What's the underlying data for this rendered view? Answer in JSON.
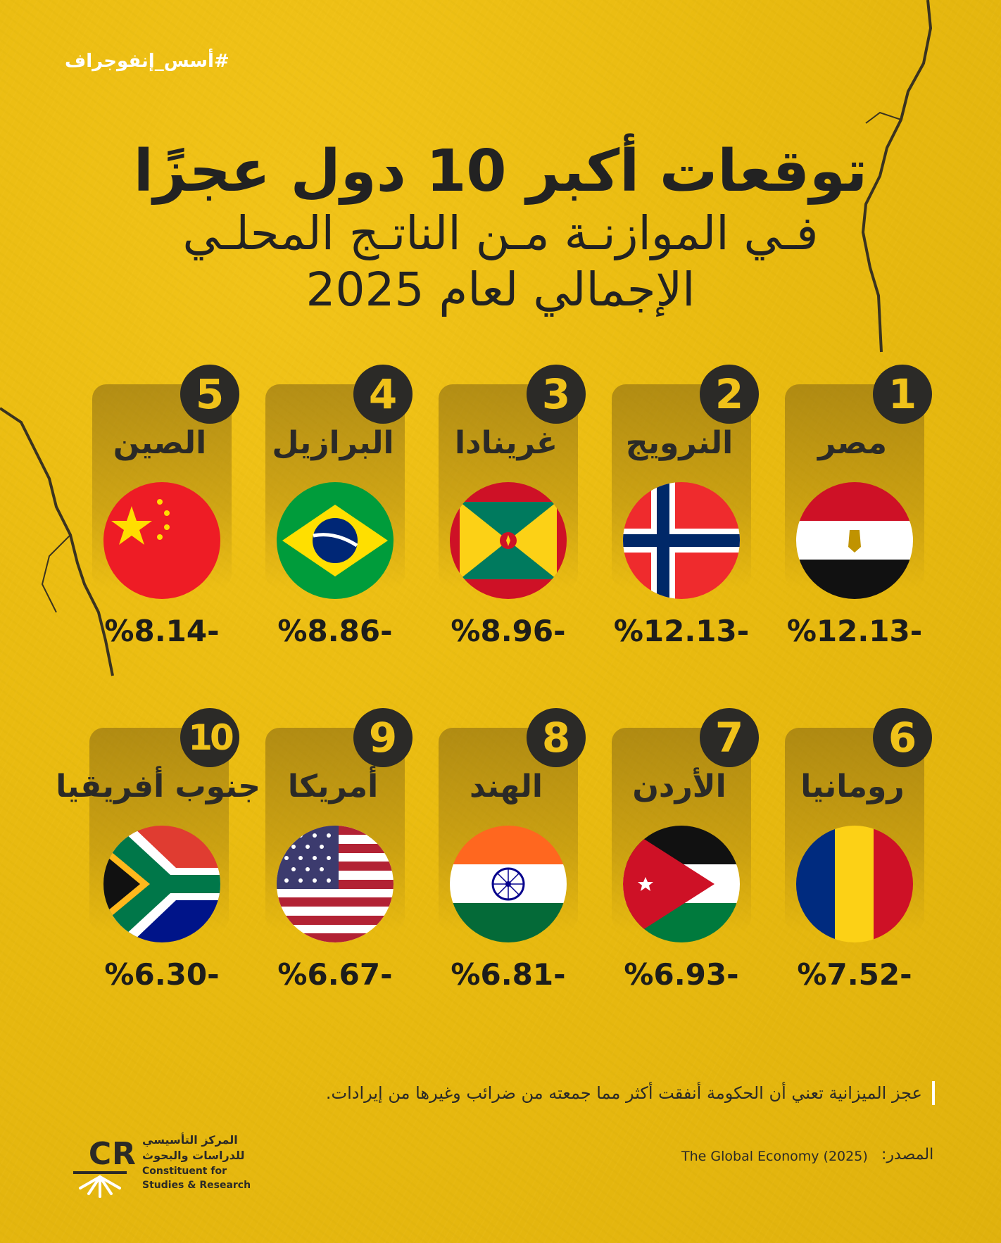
{
  "hashtag": "#أسس_إنفوجراف",
  "title": {
    "line1": "توقعات أكبر 10 دول عجزًا",
    "line2": "فـي الموازنـة مـن الناتـج المحلـي",
    "line3": "الإجمالي لعام 2025"
  },
  "countries": [
    {
      "rank": "1",
      "name": "مصر",
      "value": "%12.13-",
      "flag": "egypt-flag"
    },
    {
      "rank": "2",
      "name": "النرويج",
      "value": "%12.13-",
      "flag": "norway-flag"
    },
    {
      "rank": "3",
      "name": "غرينادا",
      "value": "%8.96-",
      "flag": "grenada-flag"
    },
    {
      "rank": "4",
      "name": "البرازيل",
      "value": "%8.86-",
      "flag": "brazil-flag"
    },
    {
      "rank": "5",
      "name": "الصين",
      "value": "%8.14-",
      "flag": "china-flag"
    },
    {
      "rank": "6",
      "name": "رومانيا",
      "value": "%7.52-",
      "flag": "romania-flag"
    },
    {
      "rank": "7",
      "name": "الأردن",
      "value": "%6.93-",
      "flag": "jordan-flag"
    },
    {
      "rank": "8",
      "name": "الهند",
      "value": "%6.81-",
      "flag": "india-flag"
    },
    {
      "rank": "9",
      "name": "أمريكا",
      "value": "%6.67-",
      "flag": "usa-flag"
    },
    {
      "rank": "10",
      "name": "جنوب أفريقيا",
      "value": "%6.30-",
      "flag": "south-africa-flag"
    }
  ],
  "note": "عجز الميزانية تعني أن الحكومة أنفقت أكثر مما جمعته من ضرائب وغيرها من إيرادات.",
  "source": {
    "label": "المصدر:",
    "value": "The Global Economy (2025)"
  },
  "logo": {
    "mark": "CSR",
    "ar_line1": "المركز التأسيسي",
    "ar_line2": "للدراسات والبحوث",
    "en_line1": "Constituent for",
    "en_line2": "Studies & Research"
  },
  "colors": {
    "background": "#ebbd12",
    "dark": "#2b2a27",
    "badge_text": "#f0c21a"
  }
}
